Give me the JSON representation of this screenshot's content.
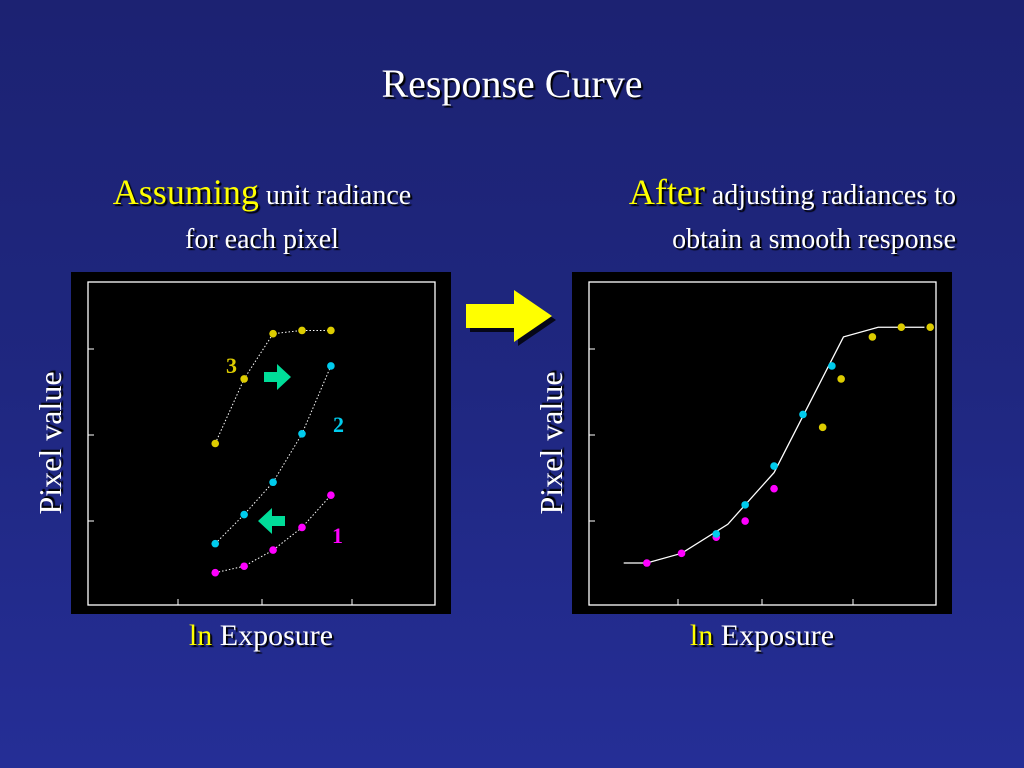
{
  "slide": {
    "title": "Response Curve"
  },
  "captions": {
    "left": {
      "lead": "Assuming",
      "rest_line1": "unit radiance",
      "rest_line2": "for each pixel"
    },
    "right": {
      "lead": "After",
      "rest_line1": "adjusting radiances to",
      "rest_line2": "obtain a smooth response"
    }
  },
  "axes": {
    "ylabel": "Pixel value",
    "xlabel_ln": "ln",
    "xlabel_rest": "Exposure"
  },
  "colors": {
    "series1": "#ff00ff",
    "series2": "#00ccee",
    "series3": "#ddcc00",
    "arrow_main": "#ffff00",
    "arrow_small": "#00dd99",
    "label1": "#ff00ff",
    "label2": "#00ccee",
    "label3": "#ddcc00"
  },
  "series_labels": [
    "1",
    "2",
    "3"
  ],
  "chart_data": [
    {
      "type": "scatter",
      "series": [
        {
          "name": "1",
          "points": [
            [
              1.1,
              0.1
            ],
            [
              1.35,
              0.12
            ],
            [
              1.6,
              0.17
            ],
            [
              1.85,
              0.24
            ],
            [
              2.1,
              0.34
            ]
          ]
        },
        {
          "name": "2",
          "points": [
            [
              1.1,
              0.19
            ],
            [
              1.35,
              0.28
            ],
            [
              1.6,
              0.38
            ],
            [
              1.85,
              0.53
            ],
            [
              2.1,
              0.74
            ]
          ]
        },
        {
          "name": "3",
          "points": [
            [
              1.1,
              0.5
            ],
            [
              1.35,
              0.7
            ],
            [
              1.6,
              0.84
            ],
            [
              1.85,
              0.85
            ],
            [
              2.1,
              0.85
            ]
          ]
        }
      ],
      "xlim": [
        0,
        3
      ],
      "ylim": [
        0,
        1
      ]
    },
    {
      "type": "line",
      "curve": [
        [
          0.3,
          0.13
        ],
        [
          0.5,
          0.13
        ],
        [
          0.8,
          0.16
        ],
        [
          1.2,
          0.25
        ],
        [
          1.6,
          0.41
        ],
        [
          2.2,
          0.83
        ],
        [
          2.5,
          0.86
        ],
        [
          2.9,
          0.86
        ]
      ],
      "series": [
        {
          "name": "1",
          "points": [
            [
              0.5,
              0.13
            ],
            [
              0.8,
              0.16
            ],
            [
              1.1,
              0.21
            ],
            [
              1.35,
              0.26
            ],
            [
              1.6,
              0.36
            ]
          ]
        },
        {
          "name": "2",
          "points": [
            [
              1.1,
              0.22
            ],
            [
              1.35,
              0.31
            ],
            [
              1.6,
              0.43
            ],
            [
              1.85,
              0.59
            ],
            [
              2.1,
              0.74
            ]
          ]
        },
        {
          "name": "3",
          "points": [
            [
              2.02,
              0.55
            ],
            [
              2.18,
              0.7
            ],
            [
              2.45,
              0.83
            ],
            [
              2.7,
              0.86
            ],
            [
              2.95,
              0.86
            ]
          ]
        }
      ],
      "xlim": [
        0,
        3
      ],
      "ylim": [
        0,
        1
      ]
    }
  ]
}
